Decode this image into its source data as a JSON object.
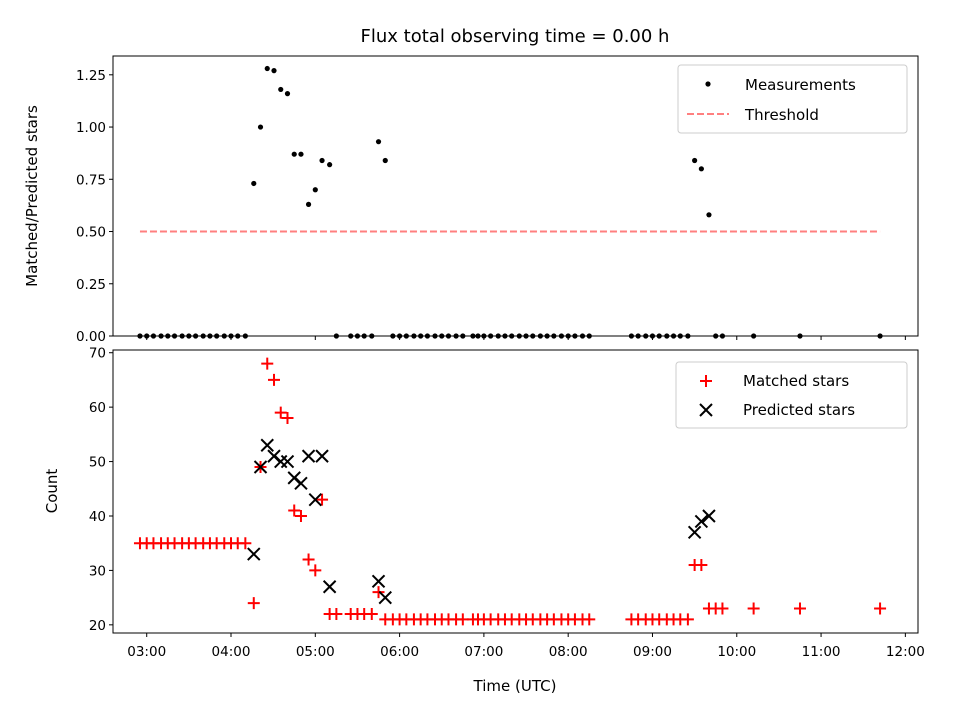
{
  "title": "Flux total observing time = 0.00 h",
  "chart_data": [
    {
      "type": "scatter",
      "ylabel": "Matched/Predicted stars",
      "xlim": [
        2.6,
        12.15
      ],
      "ylim": [
        0,
        1.34
      ],
      "yticks": [
        0.0,
        0.25,
        0.5,
        0.75,
        1.0,
        1.25
      ],
      "ytick_labels": [
        "0.00",
        "0.25",
        "0.50",
        "0.75",
        "1.00",
        "1.25"
      ],
      "legend": {
        "placement": "top-right",
        "entries": [
          {
            "label": "Measurements",
            "color": "#000000",
            "marker": "dot"
          },
          {
            "label": "Threshold",
            "color": "#ff7f7f",
            "marker": "dashed-line"
          }
        ]
      },
      "series": [
        {
          "name": "Measurements",
          "color": "#000000",
          "marker": "dot",
          "points": [
            [
              2.92,
              0
            ],
            [
              3.0,
              0
            ],
            [
              3.08,
              0
            ],
            [
              3.17,
              0
            ],
            [
              3.25,
              0
            ],
            [
              3.33,
              0
            ],
            [
              3.42,
              0
            ],
            [
              3.5,
              0
            ],
            [
              3.58,
              0
            ],
            [
              3.67,
              0
            ],
            [
              3.75,
              0
            ],
            [
              3.83,
              0
            ],
            [
              3.92,
              0
            ],
            [
              4.0,
              0
            ],
            [
              4.08,
              0
            ],
            [
              4.17,
              0
            ],
            [
              4.27,
              0.73
            ],
            [
              4.35,
              1.0
            ],
            [
              4.43,
              1.28
            ],
            [
              4.51,
              1.27
            ],
            [
              4.59,
              1.18
            ],
            [
              4.67,
              1.16
            ],
            [
              4.75,
              0.87
            ],
            [
              4.83,
              0.87
            ],
            [
              4.92,
              0.63
            ],
            [
              5.0,
              0.7
            ],
            [
              5.08,
              0.84
            ],
            [
              5.17,
              0.82
            ],
            [
              5.25,
              0
            ],
            [
              5.42,
              0
            ],
            [
              5.5,
              0
            ],
            [
              5.58,
              0
            ],
            [
              5.67,
              0
            ],
            [
              5.75,
              0.93
            ],
            [
              5.83,
              0.84
            ],
            [
              5.92,
              0
            ],
            [
              6.0,
              0
            ],
            [
              6.08,
              0
            ],
            [
              6.17,
              0
            ],
            [
              6.25,
              0
            ],
            [
              6.33,
              0
            ],
            [
              6.42,
              0
            ],
            [
              6.5,
              0
            ],
            [
              6.58,
              0
            ],
            [
              6.67,
              0
            ],
            [
              6.75,
              0
            ],
            [
              6.87,
              0
            ],
            [
              6.93,
              0
            ],
            [
              7.0,
              0
            ],
            [
              7.08,
              0
            ],
            [
              7.17,
              0
            ],
            [
              7.25,
              0
            ],
            [
              7.33,
              0
            ],
            [
              7.42,
              0
            ],
            [
              7.5,
              0
            ],
            [
              7.58,
              0
            ],
            [
              7.67,
              0
            ],
            [
              7.75,
              0
            ],
            [
              7.83,
              0
            ],
            [
              7.92,
              0
            ],
            [
              8.0,
              0
            ],
            [
              8.08,
              0
            ],
            [
              8.17,
              0
            ],
            [
              8.25,
              0
            ],
            [
              8.75,
              0
            ],
            [
              8.83,
              0
            ],
            [
              8.92,
              0
            ],
            [
              9.0,
              0
            ],
            [
              9.08,
              0
            ],
            [
              9.17,
              0
            ],
            [
              9.25,
              0
            ],
            [
              9.33,
              0
            ],
            [
              9.42,
              0
            ],
            [
              9.5,
              0.84
            ],
            [
              9.58,
              0.8
            ],
            [
              9.67,
              0.58
            ],
            [
              9.75,
              0
            ],
            [
              9.83,
              0
            ],
            [
              10.2,
              0
            ],
            [
              10.75,
              0
            ],
            [
              11.7,
              0
            ]
          ]
        },
        {
          "name": "Threshold",
          "color": "#ff7f7f",
          "style": "dashed",
          "points": [
            [
              2.92,
              0.5
            ],
            [
              11.7,
              0.5
            ]
          ]
        }
      ]
    },
    {
      "type": "scatter",
      "xlabel": "Time (UTC)",
      "ylabel": "Count",
      "xlim": [
        2.6,
        12.15
      ],
      "ylim": [
        18.5,
        70.5
      ],
      "xticks": [
        3,
        4,
        5,
        6,
        7,
        8,
        9,
        10,
        11,
        12
      ],
      "xtick_labels": [
        "03:00",
        "04:00",
        "05:00",
        "06:00",
        "07:00",
        "08:00",
        "09:00",
        "10:00",
        "11:00",
        "12:00"
      ],
      "yticks": [
        20,
        30,
        40,
        50,
        60,
        70
      ],
      "ytick_labels": [
        "20",
        "30",
        "40",
        "50",
        "60",
        "70"
      ],
      "legend": {
        "placement": "top-right",
        "entries": [
          {
            "label": "Matched stars",
            "color": "#ff0000",
            "marker": "plus"
          },
          {
            "label": "Predicted stars",
            "color": "#000000",
            "marker": "x"
          }
        ]
      },
      "series": [
        {
          "name": "Matched stars",
          "color": "#ff0000",
          "marker": "plus",
          "points": [
            [
              2.92,
              35
            ],
            [
              3.0,
              35
            ],
            [
              3.08,
              35
            ],
            [
              3.17,
              35
            ],
            [
              3.25,
              35
            ],
            [
              3.33,
              35
            ],
            [
              3.42,
              35
            ],
            [
              3.5,
              35
            ],
            [
              3.58,
              35
            ],
            [
              3.67,
              35
            ],
            [
              3.75,
              35
            ],
            [
              3.83,
              35
            ],
            [
              3.92,
              35
            ],
            [
              4.0,
              35
            ],
            [
              4.08,
              35
            ],
            [
              4.17,
              35
            ],
            [
              4.27,
              24
            ],
            [
              4.35,
              49
            ],
            [
              4.43,
              68
            ],
            [
              4.51,
              65
            ],
            [
              4.59,
              59
            ],
            [
              4.67,
              58
            ],
            [
              4.75,
              41
            ],
            [
              4.83,
              40
            ],
            [
              4.92,
              32
            ],
            [
              5.0,
              30
            ],
            [
              5.08,
              43
            ],
            [
              5.17,
              22
            ],
            [
              5.25,
              22
            ],
            [
              5.42,
              22
            ],
            [
              5.5,
              22
            ],
            [
              5.58,
              22
            ],
            [
              5.67,
              22
            ],
            [
              5.75,
              26
            ],
            [
              5.83,
              21
            ],
            [
              5.92,
              21
            ],
            [
              6.0,
              21
            ],
            [
              6.08,
              21
            ],
            [
              6.17,
              21
            ],
            [
              6.25,
              21
            ],
            [
              6.33,
              21
            ],
            [
              6.42,
              21
            ],
            [
              6.5,
              21
            ],
            [
              6.58,
              21
            ],
            [
              6.67,
              21
            ],
            [
              6.75,
              21
            ],
            [
              6.87,
              21
            ],
            [
              6.93,
              21
            ],
            [
              7.0,
              21
            ],
            [
              7.08,
              21
            ],
            [
              7.17,
              21
            ],
            [
              7.25,
              21
            ],
            [
              7.33,
              21
            ],
            [
              7.42,
              21
            ],
            [
              7.5,
              21
            ],
            [
              7.58,
              21
            ],
            [
              7.67,
              21
            ],
            [
              7.75,
              21
            ],
            [
              7.83,
              21
            ],
            [
              7.92,
              21
            ],
            [
              8.0,
              21
            ],
            [
              8.08,
              21
            ],
            [
              8.17,
              21
            ],
            [
              8.25,
              21
            ],
            [
              8.75,
              21
            ],
            [
              8.83,
              21
            ],
            [
              8.92,
              21
            ],
            [
              9.0,
              21
            ],
            [
              9.08,
              21
            ],
            [
              9.17,
              21
            ],
            [
              9.25,
              21
            ],
            [
              9.33,
              21
            ],
            [
              9.42,
              21
            ],
            [
              9.5,
              31
            ],
            [
              9.58,
              31
            ],
            [
              9.67,
              23
            ],
            [
              9.75,
              23
            ],
            [
              9.83,
              23
            ],
            [
              10.2,
              23
            ],
            [
              10.75,
              23
            ],
            [
              11.7,
              23
            ]
          ]
        },
        {
          "name": "Predicted stars",
          "color": "#000000",
          "marker": "x",
          "points": [
            [
              4.27,
              33
            ],
            [
              4.35,
              49
            ],
            [
              4.43,
              53
            ],
            [
              4.51,
              51
            ],
            [
              4.59,
              50
            ],
            [
              4.67,
              50
            ],
            [
              4.75,
              47
            ],
            [
              4.83,
              46
            ],
            [
              4.92,
              51
            ],
            [
              5.0,
              43
            ],
            [
              5.08,
              51
            ],
            [
              5.17,
              27
            ],
            [
              5.75,
              28
            ],
            [
              5.83,
              25
            ],
            [
              9.5,
              37
            ],
            [
              9.58,
              39
            ],
            [
              9.67,
              40
            ]
          ]
        }
      ]
    }
  ]
}
